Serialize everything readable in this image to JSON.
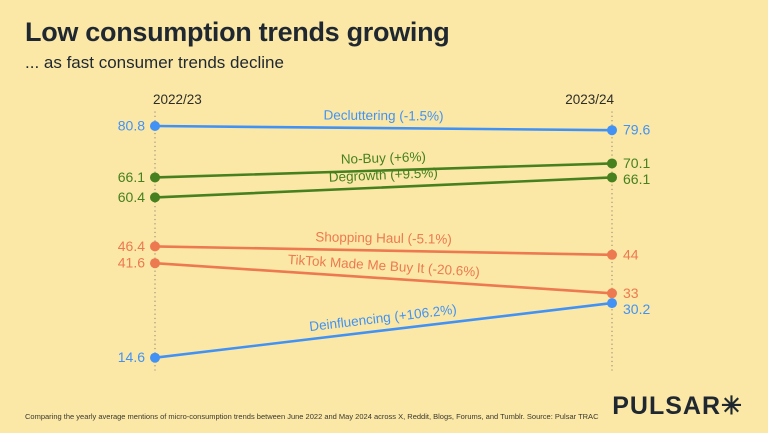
{
  "header": {
    "title": "Low consumption trends growing",
    "subtitle": "... as fast consumer trends decline"
  },
  "chart_data": {
    "type": "line",
    "variant": "slopegraph",
    "categories": [
      "2022/23",
      "2023/24"
    ],
    "series": [
      {
        "name": "Decluttering",
        "label": "Decluttering (-1.5%)",
        "change": "-1.5%",
        "color": "#4292F5",
        "values": [
          80.8,
          79.6
        ]
      },
      {
        "name": "No-Buy",
        "label": "No-Buy (+6%)",
        "change": "+6%",
        "color": "#46801F",
        "values": [
          66.1,
          70.1
        ]
      },
      {
        "name": "Degrowth",
        "label": "Degrowth (+9.5%)",
        "change": "+9.5%",
        "color": "#46801F",
        "values": [
          60.4,
          66.1
        ]
      },
      {
        "name": "Shopping Haul",
        "label": "Shopping Haul (-5.1%)",
        "change": "-5.1%",
        "color": "#ED7950",
        "values": [
          46.4,
          44
        ]
      },
      {
        "name": "TikTok Made Me Buy It",
        "label": "TikTok Made Me Buy It (-20.6%)",
        "change": "-20.6%",
        "color": "#ED7950",
        "values": [
          41.6,
          33
        ]
      },
      {
        "name": "Deinfluencing",
        "label": "Deinfluencing (+106.2%)",
        "change": "+106.2%",
        "color": "#4292F5",
        "values": [
          14.6,
          30.2
        ]
      }
    ],
    "value_range": [
      14.6,
      80.8
    ],
    "legend": "inline-labels-on-lines",
    "gridlines": "dotted vertical line at each category column"
  },
  "footer": {
    "note": "Comparing the yearly average mentions of micro-consumption trends between June 2022 and May 2024 across X, Reddit, Blogs, Forums, and Tumblr. Source: Pulsar TRAC",
    "logo_text": "PULSAR",
    "logo_symbol": "✳"
  },
  "colors": {
    "background": "#FBE8A6",
    "text_dark": "#1F2730",
    "blue": "#4292F5",
    "green": "#46801F",
    "orange": "#ED7950",
    "gridline": "#9A9078"
  }
}
